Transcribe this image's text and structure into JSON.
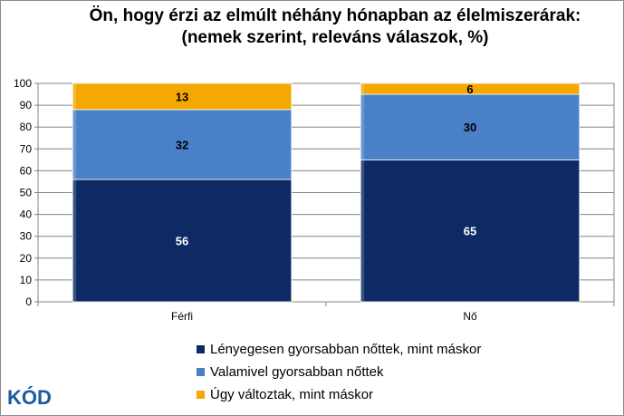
{
  "chart_data": {
    "type": "bar",
    "stacked": true,
    "title_line1": "Ön, hogy érzi az elmúlt néhány hónapban az élelmiszerárak:",
    "title_line2": "(nemek szerint, releváns válaszok, %)",
    "categories": [
      "Férfi",
      "Nő"
    ],
    "series": [
      {
        "name": "Lényegesen gyorsabban nőttek, mint máskor",
        "values": [
          56,
          65
        ],
        "color": "#0d2a64"
      },
      {
        "name": "Valamivel gyorsabban nőttek",
        "values": [
          32,
          30
        ],
        "color": "#4a80c8"
      },
      {
        "name": "Úgy változtak, mint máskor",
        "values": [
          13,
          6
        ],
        "color": "#f5a800"
      }
    ],
    "ylim": [
      0,
      100
    ],
    "yticks": [
      0,
      10,
      20,
      30,
      40,
      50,
      60,
      70,
      80,
      90,
      100
    ],
    "grid": true,
    "legend_position": "bottom"
  },
  "logo": {
    "text": "KÓD",
    "color": "#1a5aa0"
  }
}
